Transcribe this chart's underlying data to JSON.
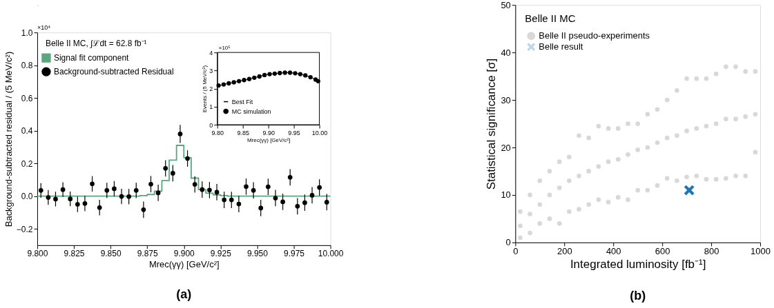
{
  "chart_data": [
    {
      "type": "step",
      "xlabel": "Mrec(γγ) [GeV/c²]",
      "ylabel": "Background-subtracted residual / (5 MeV/c²)",
      "annotations": [
        "×10⁴",
        "Belle II MC, ∫ℒdt = 62.8 fb⁻¹",
        "(a)"
      ],
      "xlim": [
        9.8,
        10.0
      ],
      "xticks": [
        {
          "value": 9.8,
          "label": "9.800"
        },
        {
          "value": 9.825,
          "label": "9.825"
        },
        {
          "value": 9.85,
          "label": "9.850"
        },
        {
          "value": 9.875,
          "label": "9.875"
        },
        {
          "value": 9.9,
          "label": "9.900"
        },
        {
          "value": 9.925,
          "label": "9.925"
        },
        {
          "value": 9.95,
          "label": "9.950"
        },
        {
          "value": 9.975,
          "label": "9.975"
        },
        {
          "value": 10.0,
          "label": "10.000"
        }
      ],
      "ylim": [
        -0.3,
        1.0
      ],
      "yticks": [
        {
          "value": -0.2,
          "label": "−0.2"
        },
        {
          "value": 0,
          "label": "0.0"
        },
        {
          "value": 0.2,
          "label": "0.2"
        },
        {
          "value": 0.4,
          "label": "0.4"
        },
        {
          "value": 0.6,
          "label": "0.6"
        },
        {
          "value": 0.8,
          "label": "0.8"
        },
        {
          "value": 1.0,
          "label": "1.0"
        }
      ],
      "grid": false,
      "legend": "top left",
      "series": [
        {
          "name": "Signal fit component",
          "color": "#5aa67e",
          "x": [
            9.8,
            9.87,
            9.875,
            9.88,
            9.885,
            9.89,
            9.895,
            9.9,
            9.905,
            9.91,
            9.915,
            9.92,
            9.925,
            9.93,
            10.0
          ],
          "values": [
            0,
            0.003,
            0.01,
            0.03,
            0.095,
            0.22,
            0.31,
            0.235,
            0.11,
            0.04,
            0.018,
            0.008,
            0.003,
            0,
            0
          ]
        },
        {
          "name": "Background-subtracted Residual",
          "type": "scatter",
          "marker": "circle",
          "color": "#000000",
          "x": [
            9.8025,
            9.8075,
            9.8125,
            9.8175,
            9.8225,
            9.8275,
            9.8325,
            9.8375,
            9.8425,
            9.8475,
            9.8525,
            9.8575,
            9.8625,
            9.8675,
            9.8725,
            9.8775,
            9.8825,
            9.8875,
            9.8925,
            9.8975,
            9.9025,
            9.9075,
            9.9125,
            9.9175,
            9.9225,
            9.9275,
            9.9325,
            9.9375,
            9.9425,
            9.9475,
            9.9525,
            9.9575,
            9.9625,
            9.9675,
            9.9725,
            9.9775,
            9.9825,
            9.9875,
            9.9925,
            9.9975
          ],
          "values": [
            0.035,
            -0.008,
            -0.018,
            0.04,
            -0.017,
            -0.05,
            -0.045,
            0.075,
            -0.07,
            0.035,
            0.045,
            -0.002,
            -0.003,
            0.035,
            -0.083,
            0.073,
            0.02,
            0.17,
            0.14,
            0.38,
            0.23,
            0.072,
            0.04,
            0.037,
            0.024,
            -0.023,
            -0.023,
            -0.048,
            0.058,
            0.035,
            -0.073,
            0.057,
            -0.012,
            -0.035,
            0.115,
            -0.062,
            -0.04,
            0.005,
            0.053,
            -0.037
          ],
          "errors": [
            0.045,
            0.045,
            0.045,
            0.045,
            0.045,
            0.047,
            0.047,
            0.047,
            0.047,
            0.047,
            0.047,
            0.047,
            0.047,
            0.047,
            0.05,
            0.05,
            0.05,
            0.05,
            0.05,
            0.055,
            0.05,
            0.05,
            0.05,
            0.05,
            0.05,
            0.05,
            0.05,
            0.05,
            0.05,
            0.05,
            0.05,
            0.05,
            0.05,
            0.05,
            0.05,
            0.05,
            0.05,
            0.05,
            0.05,
            0.05
          ]
        }
      ]
    },
    {
      "type": "line",
      "xlabel": "Mrec(γγ) [GeV/c²]",
      "ylabel": "Events / (5 MeV/c²)",
      "annotations": [
        "×10⁵"
      ],
      "xlim": [
        9.8,
        10.0
      ],
      "xticks": [
        {
          "value": 9.8,
          "label": "9.80"
        },
        {
          "value": 9.85,
          "label": "9.85"
        },
        {
          "value": 9.9,
          "label": "9.90"
        },
        {
          "value": 9.95,
          "label": "9.95"
        },
        {
          "value": 10.0,
          "label": "10.00"
        }
      ],
      "ylim": [
        0,
        4
      ],
      "yticks": [
        0,
        1,
        2,
        3,
        4
      ],
      "grid": false,
      "legend": "bottom left",
      "series": [
        {
          "name": "Best Fit",
          "color": "#000000",
          "x": [
            9.8025,
            9.8125,
            9.8225,
            9.8325,
            9.8425,
            9.8525,
            9.8625,
            9.8725,
            9.8825,
            9.8925,
            9.9025,
            9.9125,
            9.9225,
            9.9325,
            9.9425,
            9.9525,
            9.9625,
            9.9725,
            9.9825,
            9.9925,
            9.9975
          ],
          "values": [
            2.17,
            2.23,
            2.29,
            2.35,
            2.41,
            2.47,
            2.53,
            2.6,
            2.67,
            2.75,
            2.8,
            2.83,
            2.86,
            2.88,
            2.88,
            2.85,
            2.8,
            2.73,
            2.63,
            2.5,
            2.41
          ]
        },
        {
          "name": "MC simulation",
          "type": "scatter",
          "marker": "circle",
          "color": "#000000",
          "x": [
            9.8025,
            9.8125,
            9.8225,
            9.8325,
            9.8425,
            9.8525,
            9.8625,
            9.8725,
            9.8825,
            9.8925,
            9.9025,
            9.9125,
            9.9225,
            9.9325,
            9.9425,
            9.9525,
            9.9625,
            9.9725,
            9.9825,
            9.9925,
            9.9975
          ],
          "values": [
            2.17,
            2.23,
            2.29,
            2.35,
            2.41,
            2.47,
            2.53,
            2.6,
            2.67,
            2.75,
            2.8,
            2.83,
            2.86,
            2.88,
            2.88,
            2.85,
            2.8,
            2.73,
            2.63,
            2.5,
            2.41
          ]
        }
      ]
    },
    {
      "type": "scatter",
      "xlabel": "Integrated luminosity [fb⁻¹]",
      "ylabel": "Statistical significance [σ]",
      "annotations": [
        "Belle II MC",
        "(b)"
      ],
      "xlim": [
        0,
        1000
      ],
      "xticks": [
        0,
        200,
        400,
        600,
        800,
        1000
      ],
      "ylim": [
        0,
        50
      ],
      "yticks": [
        0,
        10,
        20,
        30,
        40,
        50
      ],
      "grid": false,
      "legend": "top left",
      "series": [
        {
          "name": "Belle II pseudo-experiments",
          "marker": "circle",
          "color": "#7f7f7f",
          "x": [
            20,
            20,
            20,
            60,
            60,
            60,
            100,
            100,
            100,
            140,
            140,
            140,
            180,
            180,
            180,
            220,
            220,
            220,
            260,
            260,
            260,
            300,
            300,
            300,
            340,
            340,
            340,
            380,
            380,
            380,
            420,
            420,
            420,
            460,
            460,
            460,
            500,
            500,
            500,
            540,
            540,
            540,
            580,
            580,
            580,
            620,
            620,
            620,
            660,
            660,
            660,
            700,
            700,
            700,
            740,
            740,
            740,
            780,
            780,
            780,
            820,
            820,
            820,
            860,
            860,
            860,
            900,
            900,
            900,
            940,
            940,
            940,
            980,
            980,
            980
          ],
          "values": [
            1,
            3.5,
            6.5,
            2,
            6,
            10,
            4,
            8,
            13,
            5,
            10,
            15,
            4,
            11.5,
            17,
            6.5,
            13,
            18,
            7,
            14,
            22.5,
            8,
            15,
            22,
            9,
            16,
            24.5,
            8.5,
            17,
            24,
            9.5,
            17.5,
            24,
            9,
            18.5,
            25,
            11,
            19.5,
            25,
            11,
            20,
            27,
            12,
            21,
            28,
            13.5,
            22,
            30,
            13,
            22.5,
            32,
            13.8,
            23.5,
            34.5,
            14,
            24,
            34.5,
            13.3,
            24.5,
            34.5,
            13.3,
            25,
            35.5,
            13.5,
            26,
            37,
            14,
            26,
            37,
            14,
            26.5,
            36,
            19,
            27,
            36
          ]
        },
        {
          "name": "Belle result",
          "marker": "cross",
          "color": "#1f77b4",
          "x": [
            710
          ],
          "values": [
            11
          ]
        }
      ]
    }
  ]
}
